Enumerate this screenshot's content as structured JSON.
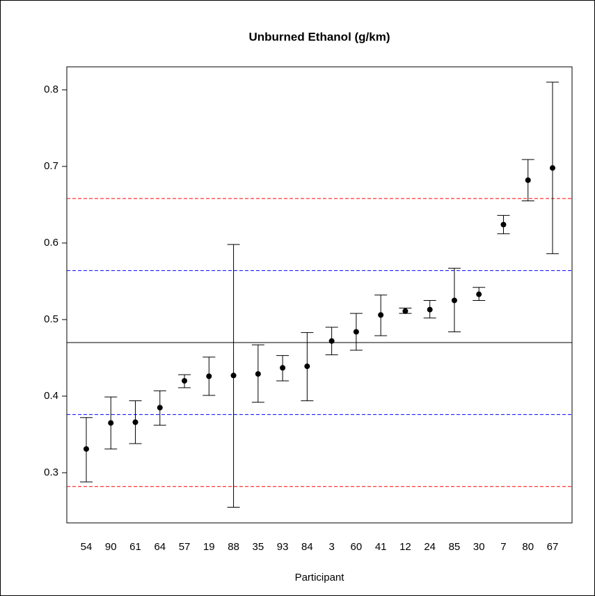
{
  "chart_data": {
    "type": "errorbar",
    "title": "Unburned Ethanol (g/km)",
    "x_label": "Participant",
    "categories": [
      "54",
      "90",
      "61",
      "64",
      "57",
      "19",
      "88",
      "35",
      "93",
      "84",
      "3",
      "60",
      "41",
      "12",
      "24",
      "85",
      "30",
      "7",
      "80",
      "67"
    ],
    "values": [
      0.331,
      0.365,
      0.366,
      0.385,
      0.42,
      0.426,
      0.427,
      0.429,
      0.437,
      0.439,
      0.472,
      0.484,
      0.506,
      0.511,
      0.513,
      0.525,
      0.533,
      0.624,
      0.682,
      0.698
    ],
    "lower": [
      0.288,
      0.331,
      0.338,
      0.362,
      0.411,
      0.401,
      0.255,
      0.392,
      0.42,
      0.394,
      0.454,
      0.46,
      0.479,
      0.508,
      0.502,
      0.484,
      0.525,
      0.612,
      0.655,
      0.586
    ],
    "upper": [
      0.372,
      0.399,
      0.394,
      0.407,
      0.428,
      0.451,
      0.598,
      0.467,
      0.453,
      0.483,
      0.49,
      0.508,
      0.532,
      0.515,
      0.525,
      0.567,
      0.542,
      0.636,
      0.709,
      0.81
    ],
    "color": "#000000",
    "reference_lines": [
      {
        "value": 0.47,
        "color": "#000000",
        "dashed": false
      },
      {
        "value": 0.564,
        "color": "#0000ff",
        "dashed": true
      },
      {
        "value": 0.376,
        "color": "#0000ff",
        "dashed": true
      },
      {
        "value": 0.658,
        "color": "#ff0000",
        "dashed": true
      },
      {
        "value": 0.282,
        "color": "#ff0000",
        "dashed": true
      }
    ],
    "ylim": [
      0.2345,
      0.83
    ],
    "yticks": [
      0.3,
      0.4,
      0.5,
      0.6,
      0.7,
      0.8
    ],
    "grid": false
  }
}
